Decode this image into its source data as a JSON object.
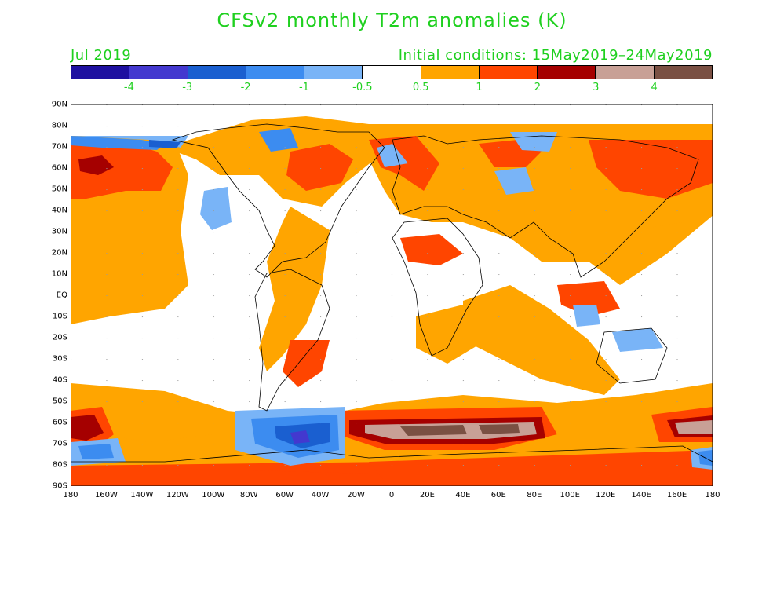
{
  "title": "CFSv2 monthly T2m anomalies (K)",
  "month_label": "Jul 2019",
  "initial_conditions": "Initial conditions: 15May2019–24May2019",
  "colorbar": {
    "colors": [
      "#1e10a0",
      "#4338cf",
      "#1a5fd0",
      "#3c8cf0",
      "#79b4f7",
      "#ffffff",
      "#ffa500",
      "#ff4500",
      "#a50000",
      "#c8a096",
      "#7a5043"
    ],
    "labels": [
      "-4",
      "-3",
      "-2",
      "-1",
      "-0.5",
      "0.5",
      "1",
      "2",
      "3",
      "4"
    ]
  },
  "lat_labels": [
    "90N",
    "80N",
    "70N",
    "60N",
    "50N",
    "40N",
    "30N",
    "20N",
    "10N",
    "EQ",
    "10S",
    "20S",
    "30S",
    "40S",
    "50S",
    "60S",
    "70S",
    "80S",
    "90S"
  ],
  "lon_labels": [
    "180",
    "160W",
    "140W",
    "120W",
    "100W",
    "80W",
    "60W",
    "40W",
    "20W",
    "0",
    "20E",
    "40E",
    "60E",
    "80E",
    "100E",
    "120E",
    "140E",
    "160E",
    "180"
  ]
}
